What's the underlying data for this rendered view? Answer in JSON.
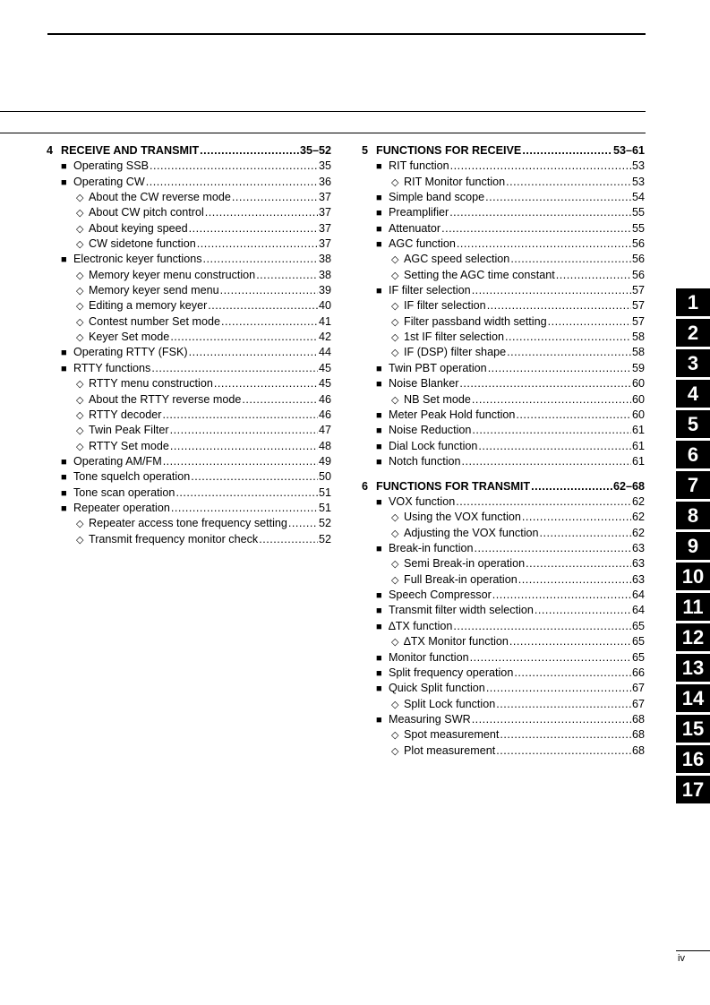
{
  "columns": [
    [
      {
        "type": "section",
        "num": "4",
        "label": "RECEIVE AND TRANSMIT",
        "page": "35–52"
      },
      {
        "type": "item",
        "label": "Operating SSB",
        "page": "35"
      },
      {
        "type": "item",
        "label": "Operating CW",
        "page": "36"
      },
      {
        "type": "sub",
        "label": "About the CW reverse mode",
        "page": "37"
      },
      {
        "type": "sub",
        "label": "About CW pitch control",
        "page": "37"
      },
      {
        "type": "sub",
        "label": "About keying speed",
        "page": "37"
      },
      {
        "type": "sub",
        "label": "CW sidetone function",
        "page": "37"
      },
      {
        "type": "item",
        "label": "Electronic keyer functions",
        "page": "38"
      },
      {
        "type": "sub",
        "label": "Memory keyer menu construction",
        "page": "38"
      },
      {
        "type": "sub",
        "label": "Memory keyer send menu",
        "page": "39"
      },
      {
        "type": "sub",
        "label": "Editing a memory keyer",
        "page": "40"
      },
      {
        "type": "sub",
        "label": "Contest number Set mode",
        "page": "41"
      },
      {
        "type": "sub",
        "label": "Keyer Set mode",
        "page": "42"
      },
      {
        "type": "item",
        "label": "Operating RTTY (FSK)",
        "page": "44"
      },
      {
        "type": "item",
        "label": "RTTY functions",
        "page": "45"
      },
      {
        "type": "sub",
        "label": "RTTY menu construction",
        "page": "45"
      },
      {
        "type": "sub",
        "label": "About the RTTY reverse mode",
        "page": "46"
      },
      {
        "type": "sub",
        "label": "RTTY decoder",
        "page": "46"
      },
      {
        "type": "sub",
        "label": "Twin Peak Filter",
        "page": "47"
      },
      {
        "type": "sub",
        "label": "RTTY Set mode",
        "page": "48"
      },
      {
        "type": "item",
        "label": "Operating AM/FM",
        "page": "49"
      },
      {
        "type": "item",
        "label": "Tone squelch operation",
        "page": "50"
      },
      {
        "type": "item",
        "label": "Tone scan operation",
        "page": "51"
      },
      {
        "type": "item",
        "label": "Repeater operation",
        "page": "51"
      },
      {
        "type": "sub",
        "label": "Repeater access tone frequency setting",
        "page": "52"
      },
      {
        "type": "sub",
        "label": "Transmit frequency monitor check",
        "page": "52"
      }
    ],
    [
      {
        "type": "section",
        "num": "5",
        "label": "FUNCTIONS FOR RECEIVE",
        "page": "53–61"
      },
      {
        "type": "item",
        "label": "RIT function",
        "page": "53"
      },
      {
        "type": "sub",
        "label": "RIT Monitor function",
        "page": "53"
      },
      {
        "type": "item",
        "label": "Simple band scope",
        "page": "54"
      },
      {
        "type": "item",
        "label": "Preamplifier",
        "page": "55"
      },
      {
        "type": "item",
        "label": "Attenuator",
        "page": "55"
      },
      {
        "type": "item",
        "label": "AGC function",
        "page": "56"
      },
      {
        "type": "sub",
        "label": "AGC speed selection",
        "page": "56"
      },
      {
        "type": "sub",
        "label": "Setting the AGC time constant",
        "page": "56"
      },
      {
        "type": "item",
        "label": "IF filter selection",
        "page": "57"
      },
      {
        "type": "sub",
        "label": "IF filter selection",
        "page": "57"
      },
      {
        "type": "sub",
        "label": "Filter passband width setting",
        "page": "57"
      },
      {
        "type": "sub",
        "label": "1st IF filter selection",
        "page": "58"
      },
      {
        "type": "sub",
        "label": "IF (DSP) filter shape",
        "page": "58"
      },
      {
        "type": "item",
        "label": "Twin PBT operation",
        "page": "59"
      },
      {
        "type": "item",
        "label": "Noise Blanker",
        "page": "60"
      },
      {
        "type": "sub",
        "label": "NB Set mode",
        "page": "60"
      },
      {
        "type": "item",
        "label": "Meter Peak Hold function",
        "page": "60"
      },
      {
        "type": "item",
        "label": "Noise Reduction",
        "page": "61"
      },
      {
        "type": "item",
        "label": "Dial Lock function",
        "page": "61"
      },
      {
        "type": "item",
        "label": "Notch function",
        "page": "61"
      },
      {
        "type": "gap"
      },
      {
        "type": "section",
        "num": "6",
        "label": "FUNCTIONS FOR TRANSMIT",
        "page": "62–68"
      },
      {
        "type": "item",
        "label": "VOX function",
        "page": "62"
      },
      {
        "type": "sub",
        "label": "Using the VOX function",
        "page": "62"
      },
      {
        "type": "sub",
        "label": "Adjusting the VOX function",
        "page": "62"
      },
      {
        "type": "item",
        "label": "Break-in function",
        "page": "63"
      },
      {
        "type": "sub",
        "label": "Semi Break-in operation",
        "page": "63"
      },
      {
        "type": "sub",
        "label": "Full Break-in operation",
        "page": "63"
      },
      {
        "type": "item",
        "label": "Speech Compressor",
        "page": "64"
      },
      {
        "type": "item",
        "label": "Transmit filter width selection",
        "page": "64"
      },
      {
        "type": "item",
        "label": "∆TX function",
        "page": "65"
      },
      {
        "type": "sub",
        "label": "∆TX Monitor function",
        "page": "65"
      },
      {
        "type": "item",
        "label": "Monitor function",
        "page": "65"
      },
      {
        "type": "item",
        "label": "Split frequency operation",
        "page": "66"
      },
      {
        "type": "item",
        "label": "Quick Split function",
        "page": "67"
      },
      {
        "type": "sub",
        "label": "Split Lock function",
        "page": "67"
      },
      {
        "type": "item",
        "label": "Measuring SWR",
        "page": "68"
      },
      {
        "type": "sub",
        "label": "Spot measurement",
        "page": "68"
      },
      {
        "type": "sub",
        "label": "Plot measurement",
        "page": "68"
      }
    ]
  ],
  "markers": {
    "item": "■",
    "sub": "◇"
  },
  "chapter_tabs": [
    "1",
    "2",
    "3",
    "4",
    "5",
    "6",
    "7",
    "8",
    "9",
    "10",
    "11",
    "12",
    "13",
    "14",
    "15",
    "16",
    "17"
  ],
  "folio": "iv"
}
